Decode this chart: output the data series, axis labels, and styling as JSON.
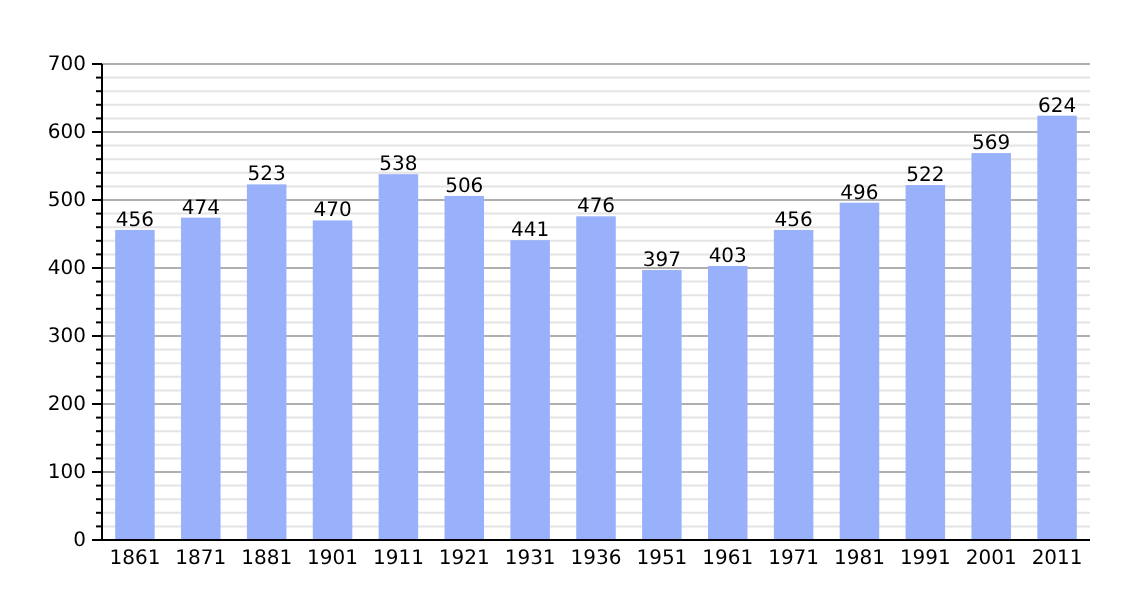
{
  "chart_data": {
    "type": "bar",
    "categories": [
      "1861",
      "1871",
      "1881",
      "1901",
      "1911",
      "1921",
      "1931",
      "1936",
      "1951",
      "1961",
      "1971",
      "1981",
      "1991",
      "2001",
      "2011"
    ],
    "values": [
      456,
      474,
      523,
      470,
      538,
      506,
      441,
      476,
      397,
      403,
      456,
      496,
      522,
      569,
      624
    ],
    "color": "#99b1fb",
    "ylim": [
      0,
      700
    ],
    "yticks": [
      0,
      {
        "value": 20,
        "label": null
      },
      {
        "value": 40,
        "label": null
      },
      {
        "value": 60,
        "label": null
      },
      {
        "value": 80,
        "label": null
      },
      100,
      {
        "value": 120,
        "label": null
      },
      {
        "value": 140,
        "label": null
      },
      {
        "value": 160,
        "label": null
      },
      {
        "value": 180,
        "label": null
      },
      200,
      {
        "value": 220,
        "label": null
      },
      {
        "value": 240,
        "label": null
      },
      {
        "value": 260,
        "label": null
      },
      {
        "value": 280,
        "label": null
      },
      300,
      {
        "value": 320,
        "label": null
      },
      {
        "value": 340,
        "label": null
      },
      {
        "value": 360,
        "label": null
      },
      {
        "value": 380,
        "label": null
      },
      400,
      {
        "value": 420,
        "label": null
      },
      {
        "value": 440,
        "label": null
      },
      {
        "value": 460,
        "label": null
      },
      {
        "value": 480,
        "label": null
      },
      500,
      {
        "value": 520,
        "label": null
      },
      {
        "value": 540,
        "label": null
      },
      {
        "value": 560,
        "label": null
      },
      {
        "value": 580,
        "label": null
      },
      600,
      {
        "value": 620,
        "label": null
      },
      {
        "value": 640,
        "label": null
      },
      {
        "value": 660,
        "label": null
      },
      {
        "value": 680,
        "label": null
      },
      700
    ],
    "grid": "y",
    "data_labels": true
  }
}
